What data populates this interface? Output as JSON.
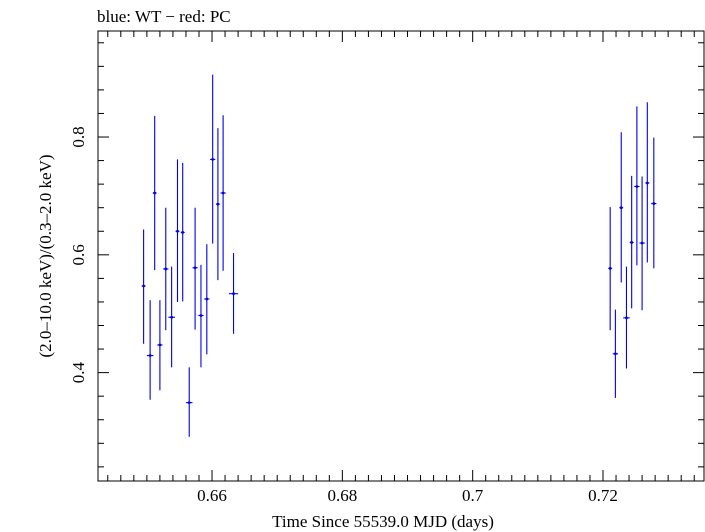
{
  "chart_data": {
    "type": "scatter",
    "title": "blue: WT − red: PC",
    "xlabel": "Time Since 55539.0 MJD (days)",
    "ylabel": "(2.0–10.0 keV)/(0.3–2.0 keV)",
    "xlim": [
      0.6425,
      0.7355
    ],
    "ylim": [
      0.216,
      0.98
    ],
    "x_ticks": [
      0.66,
      0.68,
      0.7,
      0.72
    ],
    "x_tick_labels": [
      "0.66",
      "0.68",
      "0.7",
      "0.72"
    ],
    "y_ticks": [
      0.4,
      0.6,
      0.8
    ],
    "y_tick_labels": [
      "0.4",
      "0.6",
      "0.8"
    ],
    "grid": false,
    "series": [
      {
        "color": "#0000ee",
        "points": [
          {
            "x": 0.6495,
            "xerr": 0.0003,
            "y": 0.547,
            "ylo": 0.449,
            "yhi": 0.643
          },
          {
            "x": 0.6505,
            "xerr": 0.0005,
            "y": 0.429,
            "ylo": 0.354,
            "yhi": 0.523
          },
          {
            "x": 0.6512,
            "xerr": 0.0003,
            "y": 0.705,
            "ylo": 0.574,
            "yhi": 0.836
          },
          {
            "x": 0.652,
            "xerr": 0.0004,
            "y": 0.447,
            "ylo": 0.37,
            "yhi": 0.523
          },
          {
            "x": 0.6529,
            "xerr": 0.0004,
            "y": 0.576,
            "ylo": 0.472,
            "yhi": 0.68
          },
          {
            "x": 0.6538,
            "xerr": 0.0005,
            "y": 0.494,
            "ylo": 0.409,
            "yhi": 0.58
          },
          {
            "x": 0.6547,
            "xerr": 0.0003,
            "y": 0.64,
            "ylo": 0.52,
            "yhi": 0.762
          },
          {
            "x": 0.6555,
            "xerr": 0.0003,
            "y": 0.638,
            "ylo": 0.521,
            "yhi": 0.756
          },
          {
            "x": 0.6565,
            "xerr": 0.0005,
            "y": 0.349,
            "ylo": 0.291,
            "yhi": 0.409
          },
          {
            "x": 0.6574,
            "xerr": 0.0004,
            "y": 0.578,
            "ylo": 0.473,
            "yhi": 0.68
          },
          {
            "x": 0.6583,
            "xerr": 0.0004,
            "y": 0.497,
            "ylo": 0.409,
            "yhi": 0.583
          },
          {
            "x": 0.6592,
            "xerr": 0.0004,
            "y": 0.525,
            "ylo": 0.431,
            "yhi": 0.618
          },
          {
            "x": 0.6601,
            "xerr": 0.0004,
            "y": 0.762,
            "ylo": 0.619,
            "yhi": 0.906
          },
          {
            "x": 0.6609,
            "xerr": 0.0003,
            "y": 0.686,
            "ylo": 0.557,
            "yhi": 0.815
          },
          {
            "x": 0.6617,
            "xerr": 0.0004,
            "y": 0.705,
            "ylo": 0.573,
            "yhi": 0.837
          },
          {
            "x": 0.6633,
            "xerr": 0.0007,
            "y": 0.534,
            "ylo": 0.466,
            "yhi": 0.603
          },
          {
            "x": 0.7211,
            "xerr": 0.0003,
            "y": 0.577,
            "ylo": 0.472,
            "yhi": 0.681
          },
          {
            "x": 0.7219,
            "xerr": 0.0004,
            "y": 0.432,
            "ylo": 0.357,
            "yhi": 0.507
          },
          {
            "x": 0.7228,
            "xerr": 0.0003,
            "y": 0.68,
            "ylo": 0.553,
            "yhi": 0.808
          },
          {
            "x": 0.7236,
            "xerr": 0.0005,
            "y": 0.493,
            "ylo": 0.407,
            "yhi": 0.58
          },
          {
            "x": 0.7244,
            "xerr": 0.0003,
            "y": 0.621,
            "ylo": 0.509,
            "yhi": 0.734
          },
          {
            "x": 0.7252,
            "xerr": 0.0004,
            "y": 0.716,
            "ylo": 0.582,
            "yhi": 0.852
          },
          {
            "x": 0.726,
            "xerr": 0.0004,
            "y": 0.62,
            "ylo": 0.506,
            "yhi": 0.733
          },
          {
            "x": 0.7268,
            "xerr": 0.0003,
            "y": 0.722,
            "ylo": 0.587,
            "yhi": 0.859
          },
          {
            "x": 0.7278,
            "xerr": 0.0004,
            "y": 0.687,
            "ylo": 0.577,
            "yhi": 0.799
          }
        ]
      }
    ]
  }
}
